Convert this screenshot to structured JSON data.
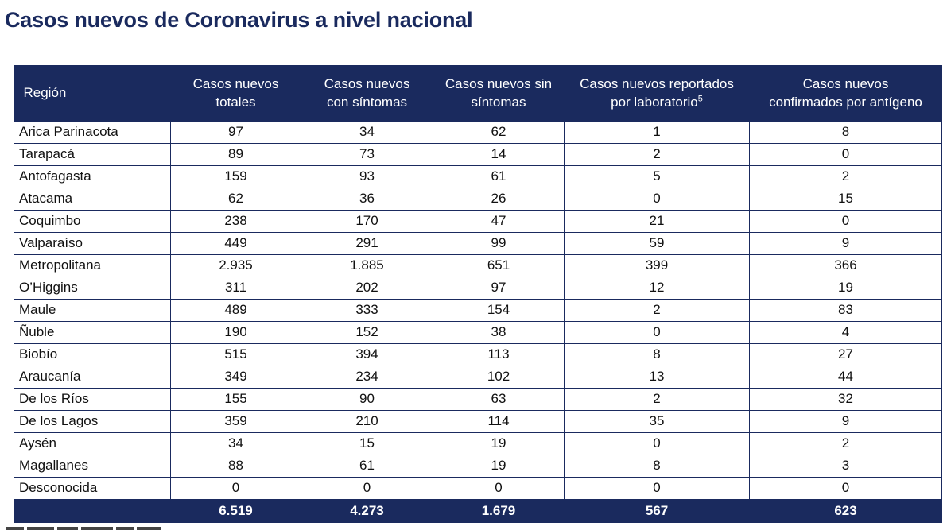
{
  "title": "Casos nuevos de Coronavirus a nivel nacional",
  "table": {
    "headers": [
      {
        "lines": [
          "Región"
        ]
      },
      {
        "lines": [
          "Casos nuevos",
          "totales"
        ]
      },
      {
        "lines": [
          "Casos nuevos",
          "con síntomas"
        ]
      },
      {
        "lines": [
          "Casos nuevos sin",
          "síntomas"
        ]
      },
      {
        "lines": [
          "Casos nuevos reportados",
          "por laboratorio"
        ],
        "superscript": "5"
      },
      {
        "lines": [
          "Casos nuevos",
          "confirmados por antígeno"
        ]
      }
    ],
    "rows": [
      [
        "Arica Parinacota",
        "97",
        "34",
        "62",
        "1",
        "8"
      ],
      [
        "Tarapacá",
        "89",
        "73",
        "14",
        "2",
        "0"
      ],
      [
        "Antofagasta",
        "159",
        "93",
        "61",
        "5",
        "2"
      ],
      [
        "Atacama",
        "62",
        "36",
        "26",
        "0",
        "15"
      ],
      [
        "Coquimbo",
        "238",
        "170",
        "47",
        "21",
        "0"
      ],
      [
        "Valparaíso",
        "449",
        "291",
        "99",
        "59",
        "9"
      ],
      [
        "Metropolitana",
        "2.935",
        "1.885",
        "651",
        "399",
        "366"
      ],
      [
        "O’Higgins",
        "311",
        "202",
        "97",
        "12",
        "19"
      ],
      [
        "Maule",
        "489",
        "333",
        "154",
        "2",
        "83"
      ],
      [
        "Ñuble",
        "190",
        "152",
        "38",
        "0",
        "4"
      ],
      [
        "Biobío",
        "515",
        "394",
        "113",
        "8",
        "27"
      ],
      [
        "Araucanía",
        "349",
        "234",
        "102",
        "13",
        "44"
      ],
      [
        "De los Ríos",
        "155",
        "90",
        "63",
        "2",
        "32"
      ],
      [
        "De los Lagos",
        "359",
        "210",
        "114",
        "35",
        "9"
      ],
      [
        "Aysén",
        "34",
        "15",
        "19",
        "0",
        "2"
      ],
      [
        "Magallanes",
        "88",
        "61",
        "19",
        "8",
        "3"
      ],
      [
        "Desconocida",
        "0",
        "0",
        "0",
        "0",
        "0"
      ]
    ],
    "totals": [
      "",
      "6.519",
      "4.273",
      "1.679",
      "567",
      "623"
    ]
  },
  "colors": {
    "header_bg": "#1a2a5e",
    "title": "#1a2a5e",
    "border": "#1a2a5e"
  }
}
